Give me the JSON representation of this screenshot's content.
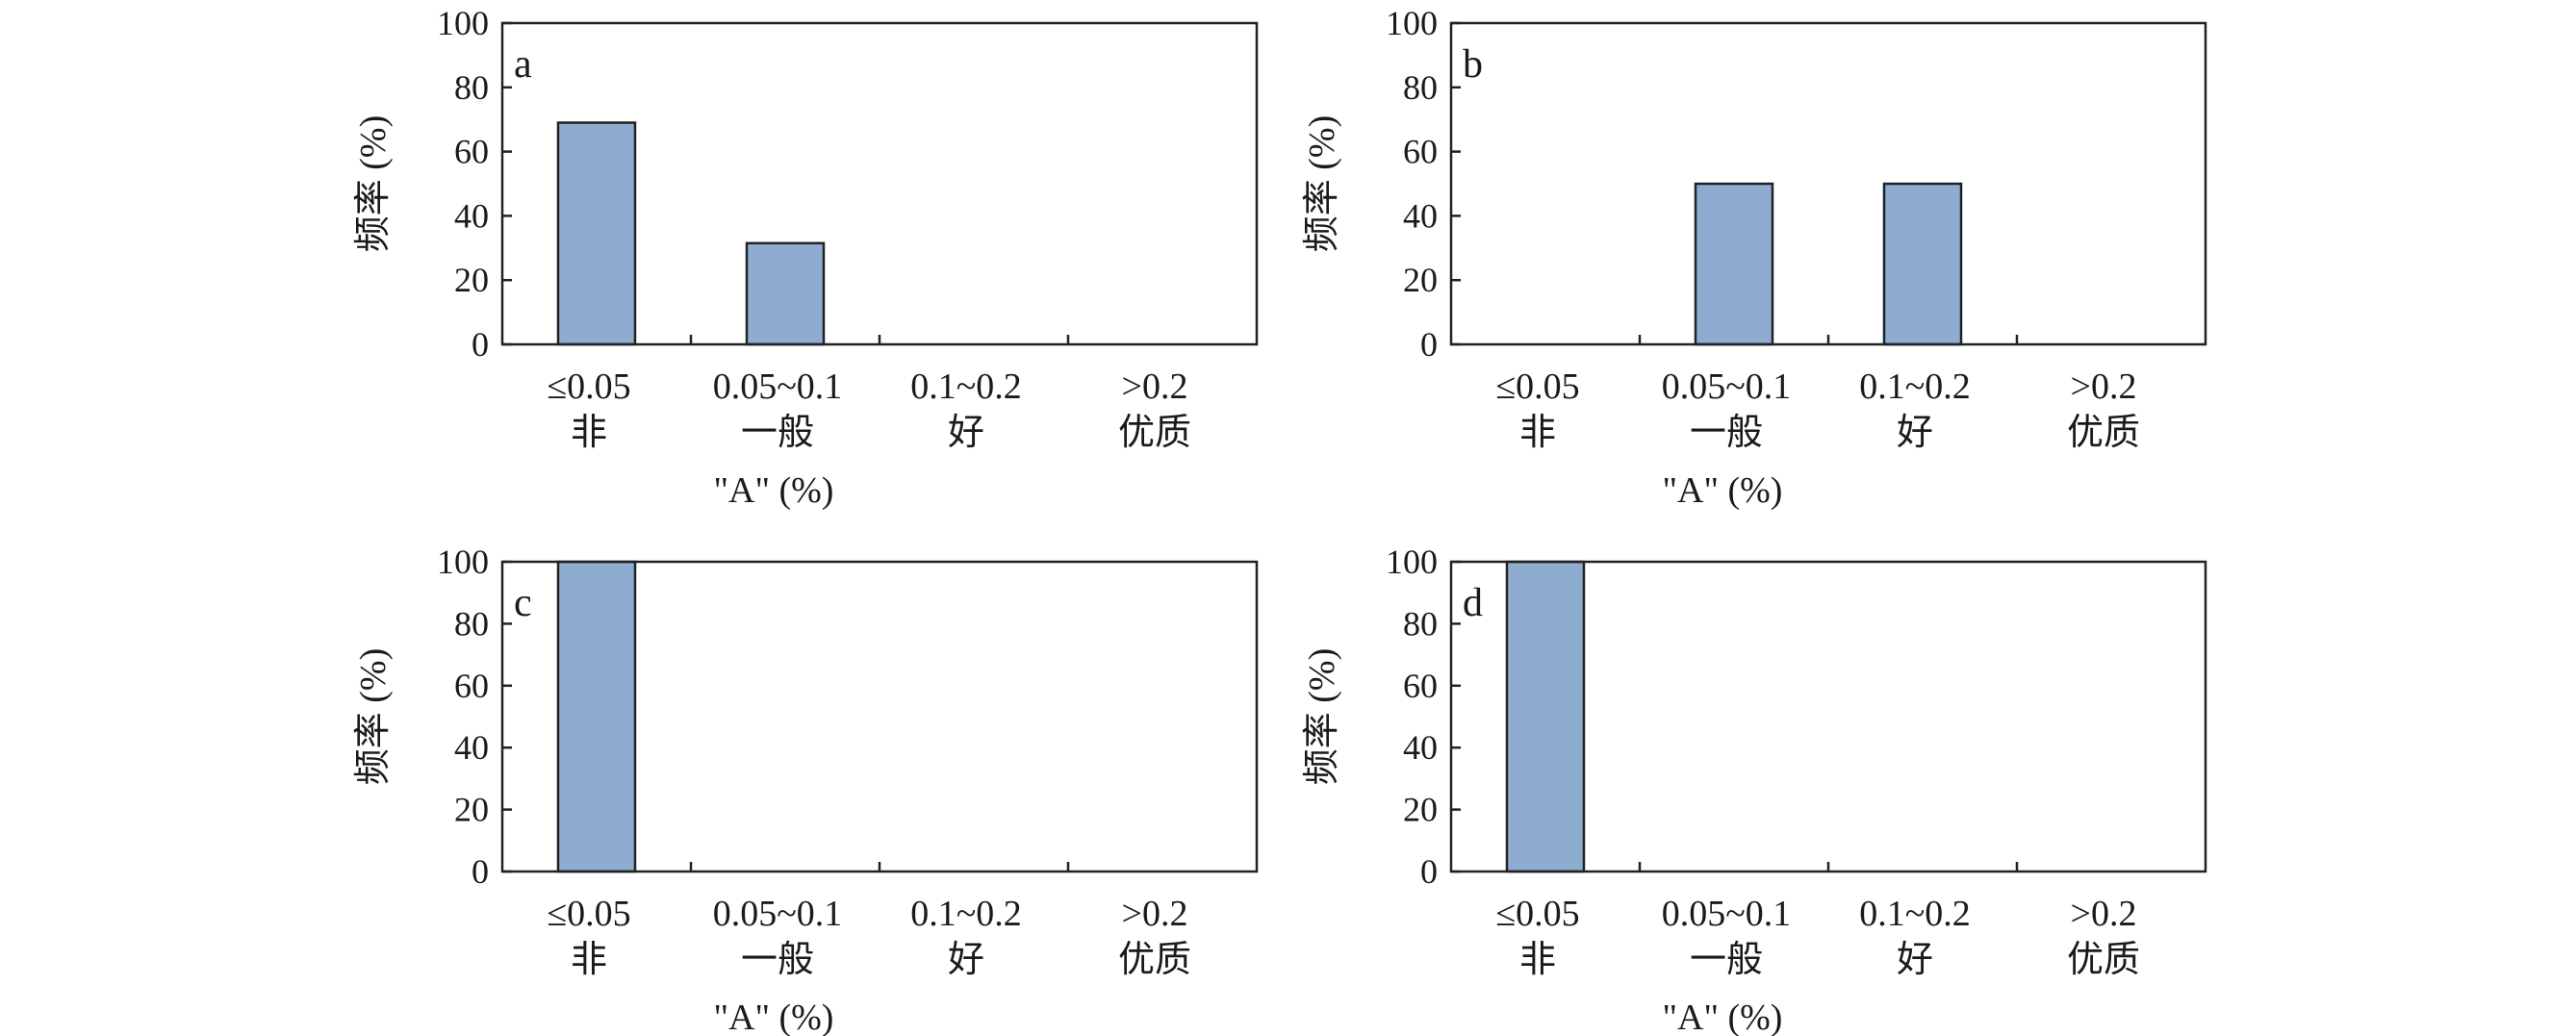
{
  "colors": {
    "bar": "#8eaccf",
    "axis": "#222222"
  },
  "chart_data": [
    {
      "type": "bar",
      "panel_label": "a",
      "categories": [
        "≤0.05",
        "0.05~0.1",
        "0.1~0.2",
        ">0.2"
      ],
      "category_sublabels": [
        "非",
        "一般",
        "好",
        "优质"
      ],
      "values": [
        69,
        31.5,
        0,
        0
      ],
      "xlabel": "\"A\" (%)",
      "ylabel": "频率 (%)",
      "ylim": [
        0,
        100
      ],
      "yticks": [
        "0",
        "20",
        "40",
        "60",
        "80",
        "100"
      ],
      "grid": false
    },
    {
      "type": "bar",
      "panel_label": "b",
      "categories": [
        "≤0.05",
        "0.05~0.1",
        "0.1~0.2",
        ">0.2"
      ],
      "category_sublabels": [
        "非",
        "一般",
        "好",
        "优质"
      ],
      "values": [
        0,
        50,
        50,
        0
      ],
      "xlabel": "\"A\" (%)",
      "ylabel": "频率 (%)",
      "ylim": [
        0,
        100
      ],
      "yticks": [
        "0",
        "20",
        "40",
        "60",
        "80",
        "100"
      ],
      "grid": false
    },
    {
      "type": "bar",
      "panel_label": "c",
      "categories": [
        "≤0.05",
        "0.05~0.1",
        "0.1~0.2",
        ">0.2"
      ],
      "category_sublabels": [
        "非",
        "一般",
        "好",
        "优质"
      ],
      "values": [
        100,
        0,
        0,
        0
      ],
      "xlabel": "\"A\" (%)",
      "ylabel": "频率 (%)",
      "ylim": [
        0,
        100
      ],
      "yticks": [
        "0",
        "20",
        "40",
        "60",
        "80",
        "100"
      ],
      "grid": false
    },
    {
      "type": "bar",
      "panel_label": "d",
      "categories": [
        "≤0.05",
        "0.05~0.1",
        "0.1~0.2",
        ">0.2"
      ],
      "category_sublabels": [
        "非",
        "一般",
        "好",
        "优质"
      ],
      "values": [
        100,
        0,
        0,
        0
      ],
      "xlabel": "\"A\" (%)",
      "ylabel": "频率 (%)",
      "ylim": [
        0,
        100
      ],
      "yticks": [
        "0",
        "20",
        "40",
        "60",
        "80",
        "100"
      ],
      "grid": false
    }
  ]
}
